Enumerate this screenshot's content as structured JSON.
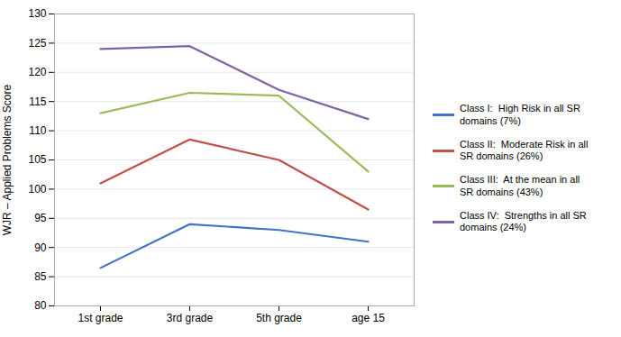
{
  "chart_data": {
    "type": "line",
    "categories": [
      "1st grade",
      "3rd grade",
      "5th grade",
      "age 15"
    ],
    "series": [
      {
        "name": "Class I:  High Risk in all SR\ndomains (7%)",
        "color": "#4472C4",
        "values": [
          86.5,
          94,
          93,
          91
        ]
      },
      {
        "name": "Class II:  Moderate Risk in all\nSR domains (26%)",
        "color": "#C0504D",
        "values": [
          101,
          108.5,
          105,
          96.5
        ]
      },
      {
        "name": "Class III:  At the mean in all\nSR domains (43%)",
        "color": "#9BBB59",
        "values": [
          113,
          116.5,
          116,
          103
        ]
      },
      {
        "name": "Class IV:  Strengths in all SR\ndomains (24%)",
        "color": "#8064A2",
        "values": [
          124,
          124.5,
          117,
          112
        ]
      }
    ],
    "ylabel": "WJR – Applied Problems Score",
    "ylim": [
      80,
      130
    ],
    "yticks": [
      80,
      85,
      90,
      95,
      100,
      105,
      110,
      115,
      120,
      125,
      130
    ],
    "grid": true,
    "legend": "right"
  }
}
